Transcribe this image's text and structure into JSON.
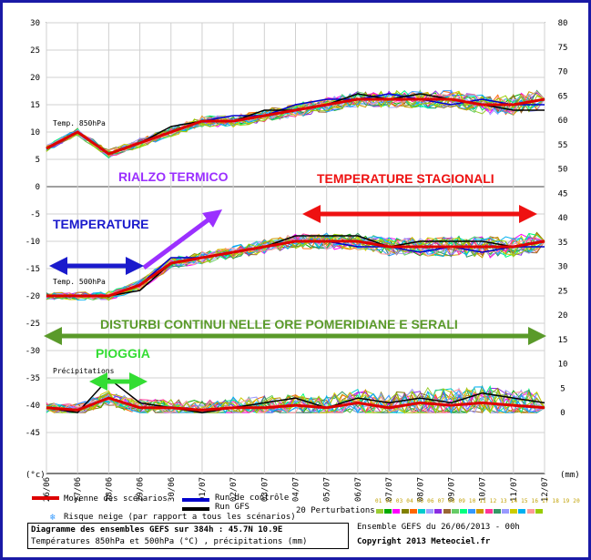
{
  "chart_data": {
    "type": "line",
    "x_dates": [
      "26/06",
      "27/06",
      "28/06",
      "29/06",
      "30/06",
      "01/07",
      "02/07",
      "03/07",
      "04/07",
      "05/07",
      "06/07",
      "07/07",
      "08/07",
      "09/07",
      "10/07",
      "11/07",
      "12/07"
    ],
    "y_left_ticks": [
      30,
      25,
      20,
      15,
      10,
      5,
      0,
      -5,
      -10,
      -15,
      -20,
      -25,
      -30,
      -35,
      -40,
      -45
    ],
    "y_right_ticks": [
      80,
      75,
      70,
      65,
      60,
      55,
      50,
      45,
      40,
      35,
      30,
      25,
      20,
      15,
      10,
      5,
      0
    ],
    "left_unit": "(°c)",
    "right_unit": "(mm)",
    "series_labels": {
      "t850": "Temp. 850hPa",
      "t500": "Temp. 500hPa",
      "precip": "Précipitations"
    },
    "mean_t850": [
      7,
      10,
      6,
      8,
      10,
      12,
      12,
      13,
      14,
      15,
      16,
      16,
      16,
      16,
      15,
      15,
      16
    ],
    "mean_t500": [
      -20,
      -20,
      -20,
      -18,
      -14,
      -13,
      -12,
      -11,
      -10,
      -10,
      -10,
      -11,
      -11,
      -11,
      -11,
      -11,
      -10
    ],
    "mean_precip": [
      1,
      0.5,
      3,
      1,
      1,
      0.5,
      1,
      1,
      1.5,
      1,
      2,
      1,
      2,
      1.5,
      2,
      1.5,
      1
    ],
    "gfs_t850": [
      7,
      10,
      6,
      8,
      11,
      12,
      12,
      14,
      14,
      15,
      17,
      16,
      17,
      16,
      15,
      14,
      14
    ],
    "gfs_t500": [
      -20,
      -20,
      -20,
      -19,
      -14,
      -13,
      -12,
      -11,
      -9,
      -9,
      -9,
      -11,
      -10,
      -10,
      -10,
      -11,
      -10
    ],
    "gfs_precip": [
      1,
      0,
      7,
      2,
      1,
      0,
      1,
      2,
      3,
      1,
      3,
      2,
      3,
      2,
      4,
      3,
      2
    ],
    "control_t850": [
      7,
      10,
      6,
      8,
      10,
      12,
      13,
      13,
      15,
      16,
      16,
      17,
      16,
      15,
      16,
      15,
      15
    ],
    "control_t500": [
      -20,
      -20,
      -20,
      -18,
      -13,
      -13,
      -12,
      -11,
      -10,
      -10,
      -11,
      -11,
      -12,
      -11,
      -12,
      -11,
      -11
    ],
    "perturbation_colors": [
      "#9acd32",
      "#00aa00",
      "#ff00ff",
      "#808000",
      "#ff6600",
      "#00cccc",
      "#a0a0ff",
      "#8a2be2",
      "#996633",
      "#66cc66",
      "#00ff7f",
      "#3399ff",
      "#cc9900",
      "#ff3399",
      "#339966",
      "#9999ff",
      "#cccc00",
      "#00b0f0",
      "#ff9999",
      "#99cc00"
    ],
    "annotations": {
      "rialzo": "RIALZO TERMICO",
      "stagionali": "TEMPERATURE STAGIONALI",
      "temperature": "TEMPERATURE",
      "disturbi": "DISTURBI CONTINUI NELLE ORE POMERIDIANE E SERALI",
      "pioggia": "PIOGGIA"
    },
    "colors": {
      "mean": "#dd0000",
      "control": "#0000cc",
      "gfs": "#000000",
      "purple": "#9b30ff",
      "red": "#ee1111",
      "blue": "#1a1acc",
      "green": "#5a9a2a",
      "lime": "#33dd33",
      "frame": "#1a1aa6"
    }
  },
  "legend": {
    "mean": "Moyenne des scénarios",
    "control": "Run de contrôle",
    "gfs": "Run GFS",
    "perturbations": "20 Perturbations",
    "perturbation_numbers": "01 02 03 04 05 06 07 08 09 10 11 12 13 14 15 16 17 18 19 20",
    "snow": "Risque neige (par rapport a tous les scénarios)",
    "title": "Diagramme des ensembles GEFS sur 384h : 45.7N 10.9E",
    "subtitle": "Températures 850hPa et 500hPa (°C) , précipitations (mm)",
    "run": "Ensemble GEFS du 26/06/2013 - 00h",
    "copyright": "Copyright 2013 Meteociel.fr"
  }
}
